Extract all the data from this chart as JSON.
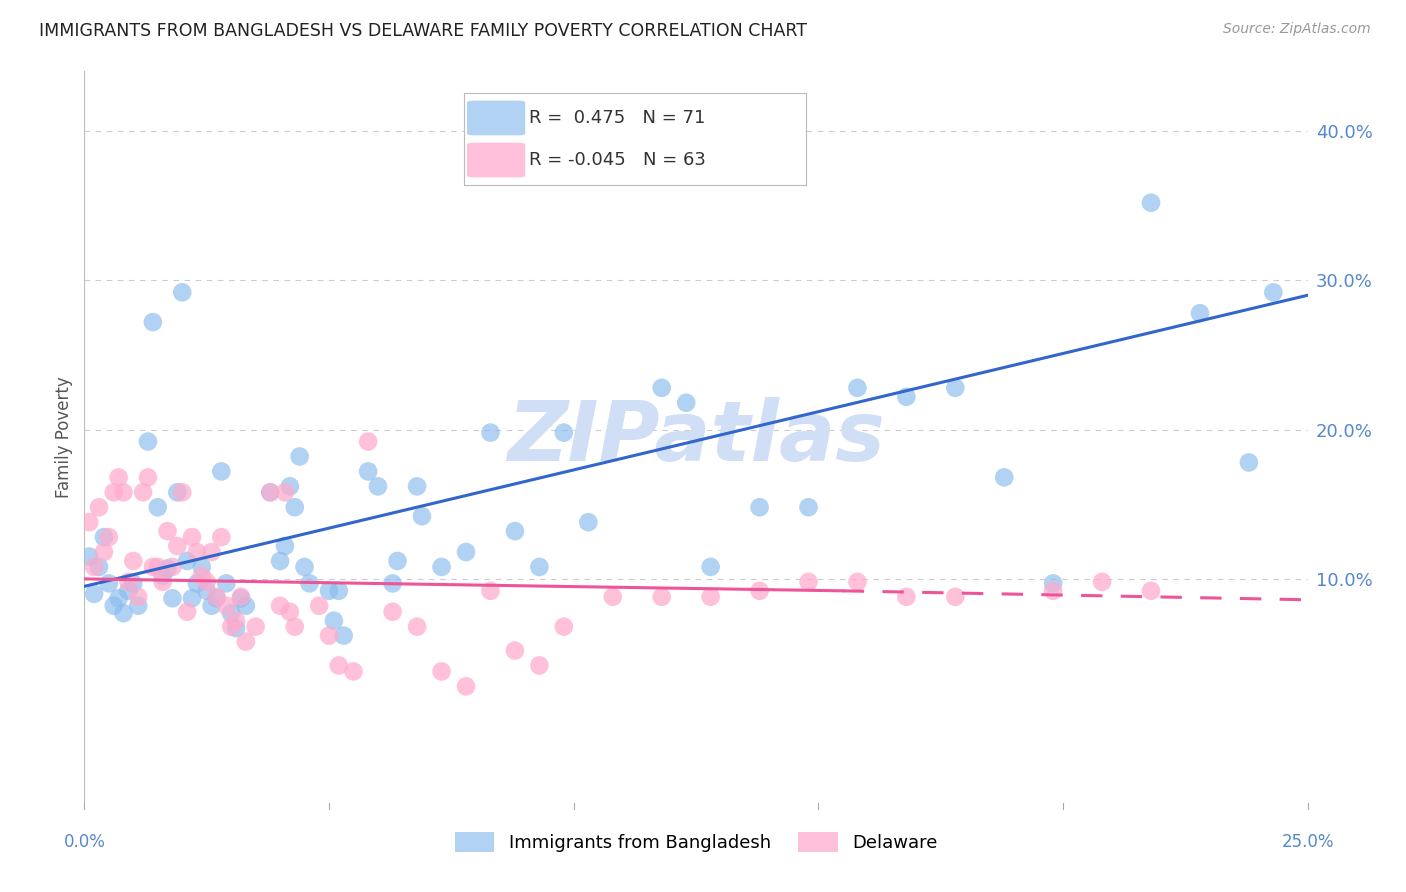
{
  "title": "IMMIGRANTS FROM BANGLADESH VS DELAWARE FAMILY POVERTY CORRELATION CHART",
  "source": "Source: ZipAtlas.com",
  "ylabel": "Family Poverty",
  "right_yticks": [
    "40.0%",
    "30.0%",
    "20.0%",
    "10.0%"
  ],
  "right_ytick_vals": [
    0.4,
    0.3,
    0.2,
    0.1
  ],
  "xmin": 0.0,
  "xmax": 0.25,
  "ymin": -0.05,
  "ymax": 0.44,
  "legend1_label": "Immigrants from Bangladesh",
  "legend2_label": "Delaware",
  "R1": 0.475,
  "N1": 71,
  "R2": -0.045,
  "N2": 63,
  "blue_color": "#88BBEE",
  "pink_color": "#FFAACC",
  "blue_line_color": "#3366CC",
  "pink_line_color": "#EE5599",
  "blue_line": [
    [
      0.0,
      0.095
    ],
    [
      0.25,
      0.29
    ]
  ],
  "pink_line_solid": [
    [
      0.0,
      0.1
    ],
    [
      0.155,
      0.092
    ]
  ],
  "pink_line_dashed": [
    [
      0.155,
      0.092
    ],
    [
      0.25,
      0.086
    ]
  ],
  "grid_color": "#cccccc",
  "bg_color": "#ffffff",
  "title_color": "#222222",
  "axis_label_color": "#5588CC",
  "watermark": "ZIPatlas",
  "watermark_color": "#d0dff5",
  "watermark_fontsize": 60,
  "blue_scatter": [
    [
      0.001,
      0.115
    ],
    [
      0.002,
      0.09
    ],
    [
      0.003,
      0.108
    ],
    [
      0.004,
      0.128
    ],
    [
      0.005,
      0.097
    ],
    [
      0.006,
      0.082
    ],
    [
      0.007,
      0.087
    ],
    [
      0.008,
      0.077
    ],
    [
      0.009,
      0.092
    ],
    [
      0.01,
      0.097
    ],
    [
      0.011,
      0.082
    ],
    [
      0.013,
      0.192
    ],
    [
      0.014,
      0.272
    ],
    [
      0.015,
      0.148
    ],
    [
      0.016,
      0.102
    ],
    [
      0.017,
      0.107
    ],
    [
      0.018,
      0.087
    ],
    [
      0.019,
      0.158
    ],
    [
      0.02,
      0.292
    ],
    [
      0.021,
      0.112
    ],
    [
      0.022,
      0.087
    ],
    [
      0.023,
      0.097
    ],
    [
      0.024,
      0.108
    ],
    [
      0.025,
      0.092
    ],
    [
      0.026,
      0.082
    ],
    [
      0.027,
      0.087
    ],
    [
      0.028,
      0.172
    ],
    [
      0.029,
      0.097
    ],
    [
      0.03,
      0.077
    ],
    [
      0.031,
      0.067
    ],
    [
      0.032,
      0.087
    ],
    [
      0.033,
      0.082
    ],
    [
      0.038,
      0.158
    ],
    [
      0.04,
      0.112
    ],
    [
      0.041,
      0.122
    ],
    [
      0.042,
      0.162
    ],
    [
      0.043,
      0.148
    ],
    [
      0.044,
      0.182
    ],
    [
      0.045,
      0.108
    ],
    [
      0.046,
      0.097
    ],
    [
      0.05,
      0.092
    ],
    [
      0.051,
      0.072
    ],
    [
      0.052,
      0.092
    ],
    [
      0.053,
      0.062
    ],
    [
      0.058,
      0.172
    ],
    [
      0.06,
      0.162
    ],
    [
      0.063,
      0.097
    ],
    [
      0.064,
      0.112
    ],
    [
      0.068,
      0.162
    ],
    [
      0.069,
      0.142
    ],
    [
      0.073,
      0.108
    ],
    [
      0.078,
      0.118
    ],
    [
      0.083,
      0.198
    ],
    [
      0.088,
      0.132
    ],
    [
      0.093,
      0.108
    ],
    [
      0.098,
      0.198
    ],
    [
      0.103,
      0.138
    ],
    [
      0.118,
      0.228
    ],
    [
      0.123,
      0.218
    ],
    [
      0.128,
      0.108
    ],
    [
      0.138,
      0.148
    ],
    [
      0.148,
      0.148
    ],
    [
      0.158,
      0.228
    ],
    [
      0.168,
      0.222
    ],
    [
      0.178,
      0.228
    ],
    [
      0.188,
      0.168
    ],
    [
      0.198,
      0.097
    ],
    [
      0.218,
      0.352
    ],
    [
      0.228,
      0.278
    ],
    [
      0.238,
      0.178
    ],
    [
      0.243,
      0.292
    ]
  ],
  "pink_scatter": [
    [
      0.001,
      0.138
    ],
    [
      0.002,
      0.108
    ],
    [
      0.003,
      0.148
    ],
    [
      0.004,
      0.118
    ],
    [
      0.005,
      0.128
    ],
    [
      0.006,
      0.158
    ],
    [
      0.007,
      0.168
    ],
    [
      0.008,
      0.158
    ],
    [
      0.009,
      0.098
    ],
    [
      0.01,
      0.112
    ],
    [
      0.011,
      0.088
    ],
    [
      0.012,
      0.158
    ],
    [
      0.013,
      0.168
    ],
    [
      0.014,
      0.108
    ],
    [
      0.015,
      0.108
    ],
    [
      0.016,
      0.098
    ],
    [
      0.017,
      0.132
    ],
    [
      0.018,
      0.108
    ],
    [
      0.019,
      0.122
    ],
    [
      0.02,
      0.158
    ],
    [
      0.021,
      0.078
    ],
    [
      0.022,
      0.128
    ],
    [
      0.023,
      0.118
    ],
    [
      0.024,
      0.102
    ],
    [
      0.025,
      0.098
    ],
    [
      0.026,
      0.118
    ],
    [
      0.027,
      0.088
    ],
    [
      0.028,
      0.128
    ],
    [
      0.029,
      0.082
    ],
    [
      0.03,
      0.068
    ],
    [
      0.031,
      0.072
    ],
    [
      0.032,
      0.088
    ],
    [
      0.033,
      0.058
    ],
    [
      0.035,
      0.068
    ],
    [
      0.038,
      0.158
    ],
    [
      0.04,
      0.082
    ],
    [
      0.041,
      0.158
    ],
    [
      0.042,
      0.078
    ],
    [
      0.043,
      0.068
    ],
    [
      0.048,
      0.082
    ],
    [
      0.05,
      0.062
    ],
    [
      0.052,
      0.042
    ],
    [
      0.055,
      0.038
    ],
    [
      0.058,
      0.192
    ],
    [
      0.063,
      0.078
    ],
    [
      0.068,
      0.068
    ],
    [
      0.073,
      0.038
    ],
    [
      0.078,
      0.028
    ],
    [
      0.083,
      0.092
    ],
    [
      0.088,
      0.052
    ],
    [
      0.093,
      0.042
    ],
    [
      0.098,
      0.068
    ],
    [
      0.108,
      0.088
    ],
    [
      0.118,
      0.088
    ],
    [
      0.128,
      0.088
    ],
    [
      0.138,
      0.092
    ],
    [
      0.148,
      0.098
    ],
    [
      0.158,
      0.098
    ],
    [
      0.168,
      0.088
    ],
    [
      0.178,
      0.088
    ],
    [
      0.198,
      0.092
    ],
    [
      0.208,
      0.098
    ],
    [
      0.218,
      0.092
    ]
  ]
}
